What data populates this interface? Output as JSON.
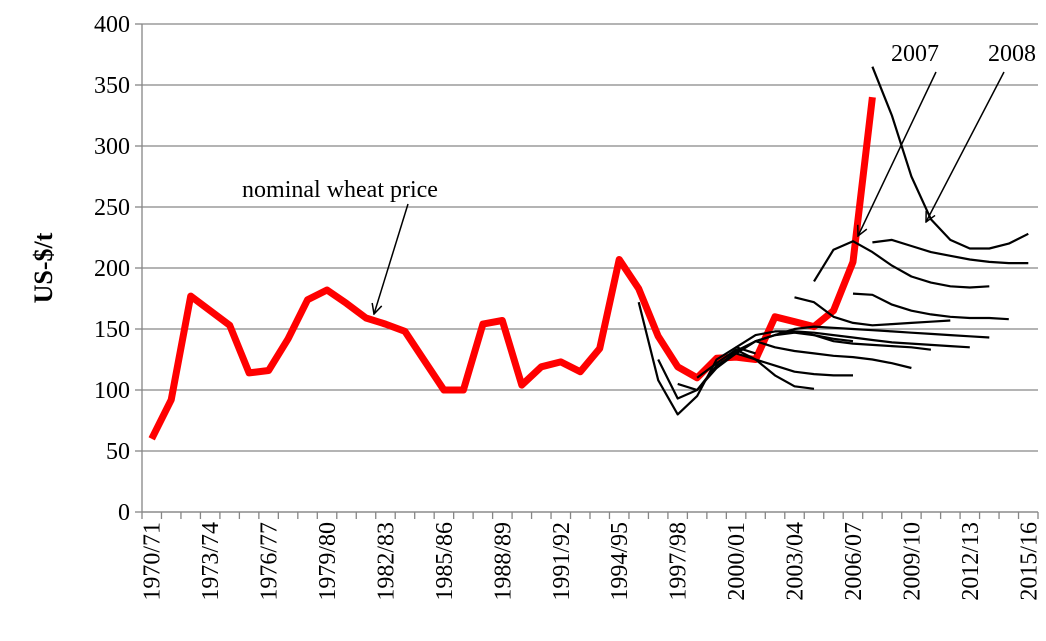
{
  "chart_data": {
    "type": "line",
    "y_label": "US-$/t",
    "categories": [
      "1970/71",
      null,
      null,
      "1973/74",
      null,
      null,
      "1976/77",
      null,
      null,
      "1979/80",
      null,
      null,
      "1982/83",
      null,
      null,
      "1985/86",
      null,
      null,
      "1988/89",
      null,
      null,
      "1991/92",
      null,
      null,
      "1994/95",
      null,
      null,
      "1997/98",
      null,
      null,
      "2000/01",
      null,
      null,
      "2003/04",
      null,
      null,
      "2006/07",
      null,
      null,
      "2009/10",
      null,
      null,
      "2012/13",
      null,
      null,
      "2015/16"
    ],
    "ylim": [
      0,
      400
    ],
    "yticks": [
      0,
      50,
      100,
      150,
      200,
      250,
      300,
      350,
      400
    ],
    "grid": true,
    "annotations": [
      "nominal wheat price",
      "2007",
      "2008"
    ],
    "series": [
      {
        "color": "#ff0000",
        "values": [
          60,
          92,
          177,
          165,
          153,
          114,
          116,
          142,
          174,
          182,
          171,
          159,
          154,
          148,
          124,
          100,
          100,
          154,
          157,
          104,
          119,
          123,
          115,
          134,
          207,
          183,
          144,
          119,
          110,
          126,
          127,
          125,
          160,
          156,
          152,
          165,
          205,
          340,
          null,
          null,
          null,
          null,
          null,
          null,
          null,
          null
        ]
      },
      {
        "color": "#000000",
        "values": [
          null,
          null,
          null,
          null,
          null,
          null,
          null,
          null,
          null,
          null,
          null,
          null,
          null,
          null,
          null,
          null,
          null,
          null,
          null,
          null,
          null,
          null,
          null,
          null,
          null,
          172,
          108,
          80,
          95,
          125,
          135,
          130,
          null,
          null,
          null,
          null,
          null,
          null,
          null,
          null,
          null,
          null,
          null,
          null,
          null,
          null
        ]
      },
      {
        "color": "#000000",
        "values": [
          null,
          null,
          null,
          null,
          null,
          null,
          null,
          null,
          null,
          null,
          null,
          null,
          null,
          null,
          null,
          null,
          null,
          null,
          null,
          null,
          null,
          null,
          null,
          null,
          null,
          null,
          125,
          93,
          100,
          118,
          130,
          140,
          145,
          147,
          145,
          142,
          140,
          null,
          null,
          null,
          null,
          null,
          null,
          null,
          null,
          null
        ]
      },
      {
        "color": "#000000",
        "values": [
          null,
          null,
          null,
          null,
          null,
          null,
          null,
          null,
          null,
          null,
          null,
          null,
          null,
          null,
          null,
          null,
          null,
          null,
          null,
          null,
          null,
          null,
          null,
          null,
          null,
          null,
          null,
          105,
          100,
          120,
          130,
          125,
          112,
          103,
          101,
          null,
          null,
          null,
          null,
          null,
          null,
          null,
          null,
          null,
          null,
          null
        ]
      },
      {
        "color": "#000000",
        "values": [
          null,
          null,
          null,
          null,
          null,
          null,
          null,
          null,
          null,
          null,
          null,
          null,
          null,
          null,
          null,
          null,
          null,
          null,
          null,
          null,
          null,
          null,
          null,
          null,
          null,
          null,
          null,
          null,
          110,
          122,
          133,
          125,
          120,
          115,
          113,
          112,
          112,
          null,
          null,
          null,
          null,
          null,
          null,
          null,
          null,
          null
        ]
      },
      {
        "color": "#000000",
        "values": [
          null,
          null,
          null,
          null,
          null,
          null,
          null,
          null,
          null,
          null,
          null,
          null,
          null,
          null,
          null,
          null,
          null,
          null,
          null,
          null,
          null,
          null,
          null,
          null,
          null,
          null,
          null,
          null,
          null,
          118,
          132,
          140,
          135,
          132,
          130,
          128,
          127,
          125,
          122,
          118,
          null,
          null,
          null,
          null,
          null,
          null
        ]
      },
      {
        "color": "#000000",
        "values": [
          null,
          null,
          null,
          null,
          null,
          null,
          null,
          null,
          null,
          null,
          null,
          null,
          null,
          null,
          null,
          null,
          null,
          null,
          null,
          null,
          null,
          null,
          null,
          null,
          null,
          null,
          null,
          null,
          null,
          null,
          130,
          140,
          145,
          148,
          145,
          140,
          138,
          137,
          136,
          135,
          133,
          null,
          null,
          null,
          null,
          null
        ]
      },
      {
        "color": "#000000",
        "values": [
          null,
          null,
          null,
          null,
          null,
          null,
          null,
          null,
          null,
          null,
          null,
          null,
          null,
          null,
          null,
          null,
          null,
          null,
          null,
          null,
          null,
          null,
          null,
          null,
          null,
          null,
          null,
          null,
          null,
          null,
          135,
          145,
          148,
          148,
          147,
          145,
          143,
          141,
          139,
          138,
          137,
          136,
          135,
          null,
          null,
          null
        ]
      },
      {
        "color": "#000000",
        "values": [
          null,
          null,
          null,
          null,
          null,
          null,
          null,
          null,
          null,
          null,
          null,
          null,
          null,
          null,
          null,
          null,
          null,
          null,
          null,
          null,
          null,
          null,
          null,
          null,
          null,
          null,
          null,
          null,
          null,
          null,
          null,
          null,
          145,
          150,
          152,
          151,
          150,
          149,
          148,
          147,
          146,
          145,
          144,
          143,
          null,
          null
        ]
      },
      {
        "color": "#000000",
        "values": [
          null,
          null,
          null,
          null,
          null,
          null,
          null,
          null,
          null,
          null,
          null,
          null,
          null,
          null,
          null,
          null,
          null,
          null,
          null,
          null,
          null,
          null,
          null,
          null,
          null,
          null,
          null,
          null,
          null,
          null,
          null,
          null,
          null,
          176,
          172,
          160,
          155,
          153,
          154,
          155,
          156,
          157,
          null,
          null,
          null,
          null
        ]
      },
      {
        "color": "#000000",
        "values": [
          null,
          null,
          null,
          null,
          null,
          null,
          null,
          null,
          null,
          null,
          null,
          null,
          null,
          null,
          null,
          null,
          null,
          null,
          null,
          null,
          null,
          null,
          null,
          null,
          null,
          null,
          null,
          null,
          null,
          null,
          null,
          null,
          null,
          null,
          189,
          215,
          222,
          213,
          202,
          193,
          188,
          185,
          184,
          185,
          null,
          null
        ]
      },
      {
        "color": "#000000",
        "values": [
          null,
          null,
          null,
          null,
          null,
          null,
          null,
          null,
          null,
          null,
          null,
          null,
          null,
          null,
          null,
          null,
          null,
          null,
          null,
          null,
          null,
          null,
          null,
          null,
          null,
          null,
          null,
          null,
          null,
          null,
          null,
          null,
          null,
          null,
          null,
          null,
          179,
          178,
          170,
          165,
          162,
          160,
          159,
          159,
          158,
          null
        ]
      },
      {
        "color": "#000000",
        "values": [
          null,
          null,
          null,
          null,
          null,
          null,
          null,
          null,
          null,
          null,
          null,
          null,
          null,
          null,
          null,
          null,
          null,
          null,
          null,
          null,
          null,
          null,
          null,
          null,
          null,
          null,
          null,
          null,
          null,
          null,
          null,
          null,
          null,
          null,
          null,
          null,
          null,
          221,
          223,
          218,
          213,
          210,
          207,
          205,
          204,
          204
        ]
      },
      {
        "color": "#000000",
        "values": [
          null,
          null,
          null,
          null,
          null,
          null,
          null,
          null,
          null,
          null,
          null,
          null,
          null,
          null,
          null,
          null,
          null,
          null,
          null,
          null,
          null,
          null,
          null,
          null,
          null,
          null,
          null,
          null,
          null,
          null,
          null,
          null,
          null,
          null,
          null,
          null,
          null,
          365,
          325,
          275,
          240,
          223,
          216,
          216,
          220,
          228
        ]
      }
    ]
  }
}
